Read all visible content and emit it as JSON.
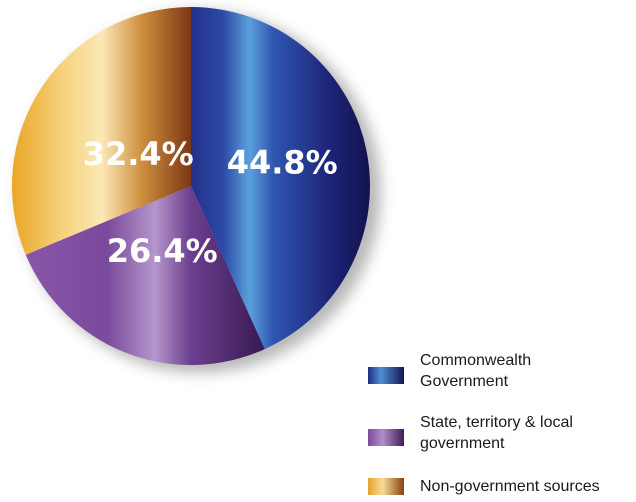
{
  "chart_data": {
    "type": "pie",
    "title": "",
    "legend_position": "bottom-right",
    "slices": [
      {
        "name": "Commonwealth Government",
        "value": 44.8,
        "label": "44.8%",
        "color": "#2a3590"
      },
      {
        "name": "State, territory & local government",
        "value": 26.4,
        "label": "26.4%",
        "color": "#6a3f8f"
      },
      {
        "name": "Non-government sources",
        "value": 32.4,
        "label": "32.4%",
        "color": "#d99a2e"
      }
    ]
  },
  "legend": {
    "items": [
      {
        "line1": "Commonwealth",
        "line2": "Government"
      },
      {
        "line1": "State, territory & local",
        "line2": "government"
      },
      {
        "line1": "Non-government sources",
        "line2": ""
      }
    ]
  }
}
